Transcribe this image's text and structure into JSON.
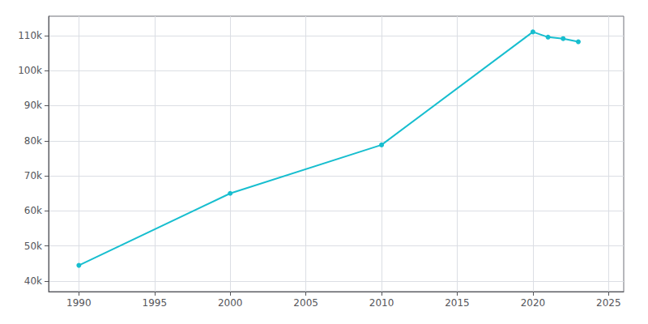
{
  "chart_data": {
    "type": "line",
    "x": [
      1990,
      2000,
      2010,
      2020,
      2021,
      2022,
      2023
    ],
    "values": [
      44479,
      65000,
      78817,
      111026,
      109535,
      109105,
      108209
    ],
    "color": "#17becf",
    "marker": "circle",
    "xlim": [
      1988,
      2026
    ],
    "xticks": [
      1990,
      1995,
      2000,
      2005,
      2010,
      2015,
      2020,
      2025
    ],
    "ylim": [
      37000,
      115500
    ],
    "yticks": [
      {
        "value": 40000,
        "label": "40k"
      },
      {
        "value": 50000,
        "label": "50k"
      },
      {
        "value": 60000,
        "label": "60k"
      },
      {
        "value": 70000,
        "label": "70k"
      },
      {
        "value": 80000,
        "label": "80k"
      },
      {
        "value": 90000,
        "label": "90k"
      },
      {
        "value": 100000,
        "label": "100k"
      },
      {
        "value": 110000,
        "label": "110k"
      }
    ],
    "grid": true
  }
}
